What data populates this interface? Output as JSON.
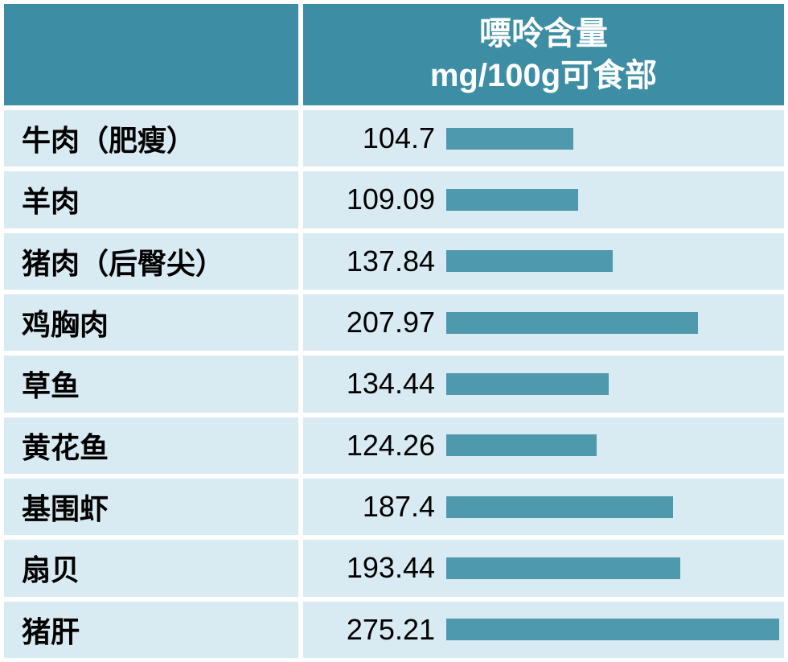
{
  "header": {
    "corner_label": "",
    "title_line1": "嘌呤含量",
    "title_line2": "mg/100g可食部"
  },
  "colors": {
    "header_bg": "#3D8EA4",
    "header_text": "#FFFFFF",
    "row_bg": "#D8EAF2",
    "bar": "#4E99AC",
    "body_text": "#000000"
  },
  "chart_data": {
    "type": "bar",
    "orientation": "horizontal",
    "title": "嘌呤含量 mg/100g可食部",
    "xlabel": "",
    "ylabel": "",
    "categories": [
      "牛肉（肥瘦）",
      "羊肉",
      "猪肉（后臀尖）",
      "鸡胸肉",
      "草鱼",
      "黄花鱼",
      "基围虾",
      "扇贝",
      "猪肝"
    ],
    "values": [
      104.7,
      109.09,
      137.84,
      207.97,
      134.44,
      124.26,
      187.4,
      193.44,
      275.21
    ],
    "value_labels": [
      "104.7",
      "109.09",
      "137.84",
      "207.97",
      "134.44",
      "124.26",
      "187.4",
      "193.44",
      "275.21"
    ],
    "max_value": 275.21,
    "legend": "none",
    "grid": "off"
  }
}
